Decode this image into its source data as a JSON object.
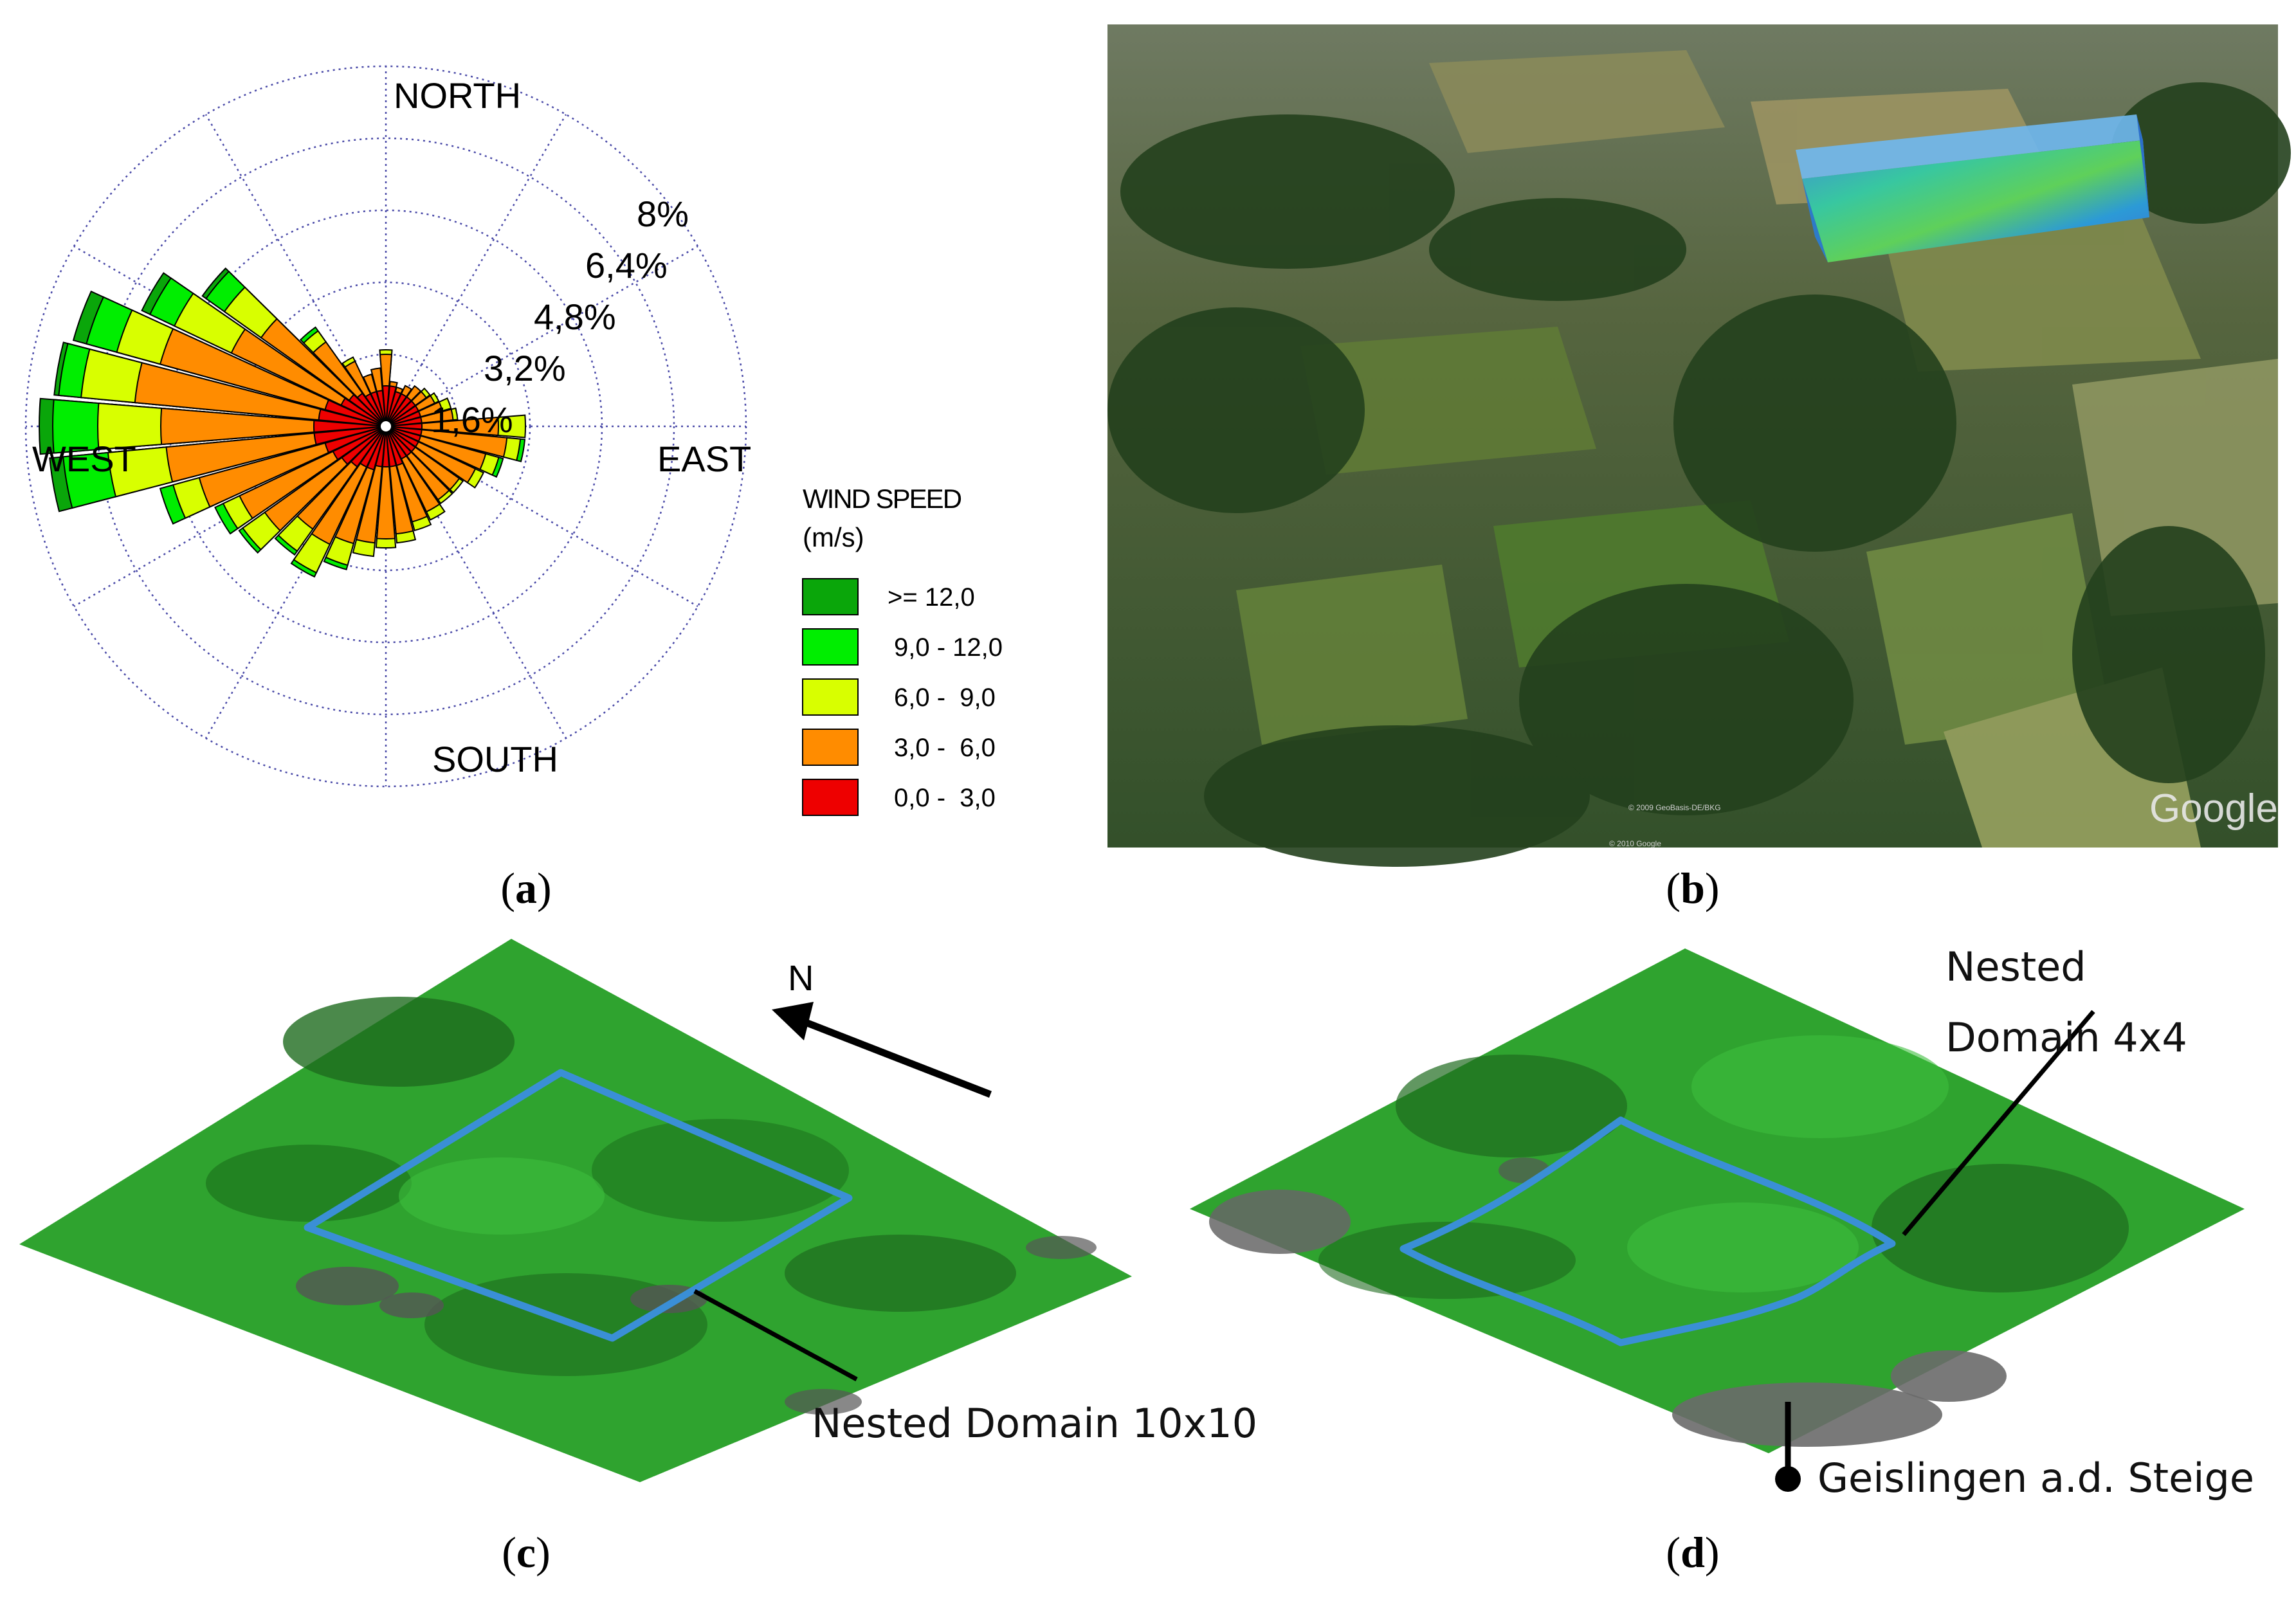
{
  "panels": {
    "a": {
      "caption": "a",
      "compass": {
        "north": "NORTH",
        "south": "SOUTH",
        "east": "EAST",
        "west": "WEST"
      },
      "rings": [
        "1,6%",
        "3,2%",
        "4,8%",
        "6,4%",
        "8%"
      ],
      "legend": {
        "title_line1": "WIND SPEED",
        "title_line2": "(m/s)",
        "items": [
          {
            "label": ">= 12,0",
            "color": "#0aa60a"
          },
          {
            "label": "9,0 - 12,0",
            "color": "#00ee00"
          },
          {
            "label": "6,0 -  9,0",
            "color": "#d8ff00"
          },
          {
            "label": "3,0 -  6,0",
            "color": "#ff8c00"
          },
          {
            "label": "0,0 -  3,0",
            "color": "#ee0000"
          }
        ]
      }
    },
    "b": {
      "caption": "b",
      "watermark": "Google",
      "small_credits": [
        "© 2009 GeoBasis-DE/BKG",
        "© 2010 Google"
      ]
    },
    "c": {
      "caption": "c",
      "north_label": "N",
      "callout": "Nested Domain 10x10"
    },
    "d": {
      "caption": "d",
      "callout_line1": "Nested",
      "callout_line2": "Domain 4x4",
      "town_label": "Geislingen a.d. Steige"
    }
  },
  "chart_data": {
    "type": "wind-rose",
    "directions_deg": [
      0,
      10,
      20,
      30,
      40,
      50,
      60,
      70,
      80,
      90,
      100,
      110,
      120,
      130,
      140,
      150,
      160,
      170,
      180,
      190,
      200,
      210,
      220,
      230,
      240,
      250,
      260,
      270,
      280,
      290,
      300,
      310,
      320,
      330,
      340,
      350
    ],
    "radial_unit": "%",
    "radial_ticks": [
      1.6,
      3.2,
      4.8,
      6.4,
      8.0
    ],
    "speed_bins": [
      "0,0 -  3,0",
      "3,0 -  6,0",
      "6,0 -  9,0",
      "9,0 - 12,0",
      ">= 12,0"
    ],
    "cumulative_percent": [
      [
        0.9,
        1.6,
        1.7,
        1.7,
        1.7
      ],
      [
        0.9,
        1.0,
        1.0,
        1.0,
        1.0
      ],
      [
        0.8,
        0.9,
        0.9,
        0.9,
        0.9
      ],
      [
        0.8,
        1.0,
        1.0,
        1.0,
        1.0
      ],
      [
        0.8,
        1.1,
        1.1,
        1.1,
        1.1
      ],
      [
        0.8,
        1.1,
        1.2,
        1.2,
        1.2
      ],
      [
        0.8,
        1.2,
        1.3,
        1.3,
        1.3
      ],
      [
        0.8,
        1.3,
        1.5,
        1.5,
        1.5
      ],
      [
        0.8,
        1.5,
        1.6,
        1.6,
        1.6
      ],
      [
        0.8,
        2.5,
        3.1,
        3.1,
        3.1
      ],
      [
        0.8,
        2.7,
        3.0,
        3.1,
        3.1
      ],
      [
        0.8,
        2.3,
        2.6,
        2.7,
        2.7
      ],
      [
        0.8,
        2.2,
        2.4,
        2.4,
        2.4
      ],
      [
        0.8,
        2.0,
        2.1,
        2.1,
        2.1
      ],
      [
        0.8,
        2.0,
        2.1,
        2.1,
        2.1
      ],
      [
        0.8,
        2.1,
        2.3,
        2.3,
        2.3
      ],
      [
        0.9,
        2.2,
        2.4,
        2.4,
        2.4
      ],
      [
        0.9,
        2.4,
        2.6,
        2.6,
        2.6
      ],
      [
        0.9,
        2.5,
        2.7,
        2.7,
        2.7
      ],
      [
        0.9,
        2.6,
        2.9,
        2.9,
        2.9
      ],
      [
        1.0,
        2.7,
        3.2,
        3.3,
        3.3
      ],
      [
        1.0,
        2.9,
        3.6,
        3.7,
        3.7
      ],
      [
        1.1,
        2.8,
        3.4,
        3.5,
        3.5
      ],
      [
        1.2,
        3.3,
        3.9,
        4.0,
        4.0
      ],
      [
        1.3,
        3.6,
        4.0,
        4.2,
        4.2
      ],
      [
        1.4,
        4.3,
        4.9,
        5.2,
        5.2
      ],
      [
        1.6,
        4.9,
        6.2,
        7.2,
        7.5
      ],
      [
        1.6,
        5.0,
        6.4,
        7.4,
        7.7
      ],
      [
        1.5,
        5.6,
        6.8,
        7.3,
        7.4
      ],
      [
        1.4,
        5.2,
        6.2,
        6.9,
        7.2
      ],
      [
        1.1,
        3.8,
        5.2,
        5.8,
        6.0
      ],
      [
        1.0,
        3.4,
        4.4,
        4.9,
        5.0
      ],
      [
        0.9,
        2.3,
        2.6,
        2.7,
        2.7
      ],
      [
        0.8,
        1.6,
        1.7,
        1.7,
        1.7
      ],
      [
        0.8,
        1.2,
        1.2,
        1.2,
        1.2
      ],
      [
        0.8,
        1.3,
        1.3,
        1.3,
        1.3
      ]
    ]
  }
}
